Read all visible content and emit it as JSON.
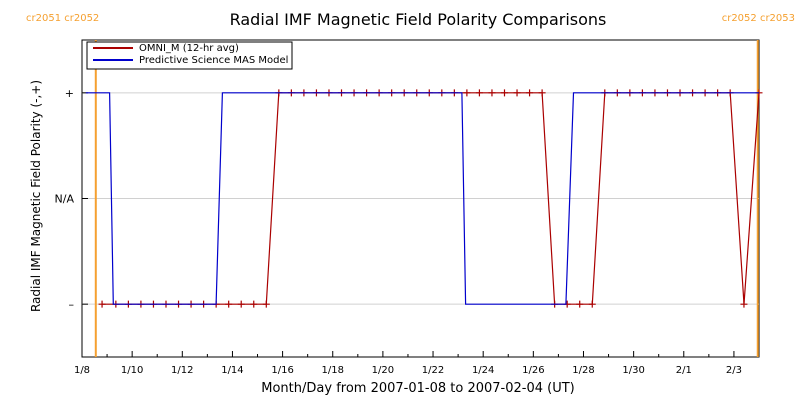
{
  "chart_data": {
    "type": "line",
    "title": "Radial IMF Magnetic Field Polarity Comparisons",
    "xlabel": "Month/Day from 2007-01-08 to 2007-02-04 (UT)",
    "ylabel": "Radial IMF Magnetic Field Polarity (-,+)",
    "x_unit": "day of 2007",
    "xlim": [
      8,
      35
    ],
    "ylim": [
      -1.5,
      1.5
    ],
    "x_ticks": [
      {
        "x": 8,
        "label": "1/8"
      },
      {
        "x": 10,
        "label": "1/10"
      },
      {
        "x": 12,
        "label": "1/12"
      },
      {
        "x": 14,
        "label": "1/14"
      },
      {
        "x": 16,
        "label": "1/16"
      },
      {
        "x": 18,
        "label": "1/18"
      },
      {
        "x": 20,
        "label": "1/20"
      },
      {
        "x": 22,
        "label": "1/22"
      },
      {
        "x": 24,
        "label": "1/24"
      },
      {
        "x": 26,
        "label": "1/26"
      },
      {
        "x": 28,
        "label": "1/28"
      },
      {
        "x": 30,
        "label": "1/30"
      },
      {
        "x": 32,
        "label": "2/1"
      },
      {
        "x": 34,
        "label": "2/3"
      }
    ],
    "y_ticks": [
      {
        "y": 1,
        "label": "+"
      },
      {
        "y": 0,
        "label": "N/A"
      },
      {
        "y": -1,
        "label": "–"
      }
    ],
    "legend_position": "top-left",
    "series": [
      {
        "name": "OMNI_M (12-hr avg)",
        "color": "#aa0000",
        "marker": "+",
        "x": [
          8.8,
          9.35,
          9.85,
          10.35,
          10.85,
          11.35,
          11.85,
          12.35,
          12.85,
          13.35,
          13.85,
          14.35,
          14.85,
          15.35,
          15.85,
          16.35,
          16.85,
          17.35,
          17.85,
          18.35,
          18.85,
          19.35,
          19.85,
          20.35,
          20.85,
          21.35,
          21.85,
          22.35,
          22.85,
          23.35,
          23.85,
          24.35,
          24.85,
          25.35,
          25.85,
          26.35,
          26.85,
          27.35,
          27.85,
          28.35,
          28.85,
          29.35,
          29.85,
          30.35,
          30.85,
          31.35,
          31.85,
          32.35,
          32.85,
          33.35,
          33.85,
          34.4,
          35.0
        ],
        "y": [
          -1,
          -1,
          -1,
          -1,
          -1,
          -1,
          -1,
          -1,
          -1,
          -1,
          -1,
          -1,
          -1,
          -1,
          1,
          1,
          1,
          1,
          1,
          1,
          1,
          1,
          1,
          1,
          1,
          1,
          1,
          1,
          1,
          1,
          1,
          1,
          1,
          1,
          1,
          1,
          -1,
          -1,
          -1,
          -1,
          1,
          1,
          1,
          1,
          1,
          1,
          1,
          1,
          1,
          1,
          1,
          -1,
          1
        ]
      },
      {
        "name": "Predictive Science MAS Model",
        "color": "#0000cc",
        "marker": "none",
        "x": [
          8.15,
          8.5,
          9.1,
          9.25,
          13.35,
          13.6,
          23.15,
          23.3,
          27.3,
          27.6,
          35.0
        ],
        "y": [
          1,
          1,
          1,
          -1,
          -1,
          1,
          1,
          -1,
          -1,
          1,
          1
        ]
      }
    ],
    "annotations": [
      {
        "label": "cr2051 cr2052",
        "x": 8.55,
        "color": "#f5a030"
      },
      {
        "label": "cr2052 cr2053",
        "x": 34.95,
        "color": "#f5a030"
      }
    ]
  }
}
